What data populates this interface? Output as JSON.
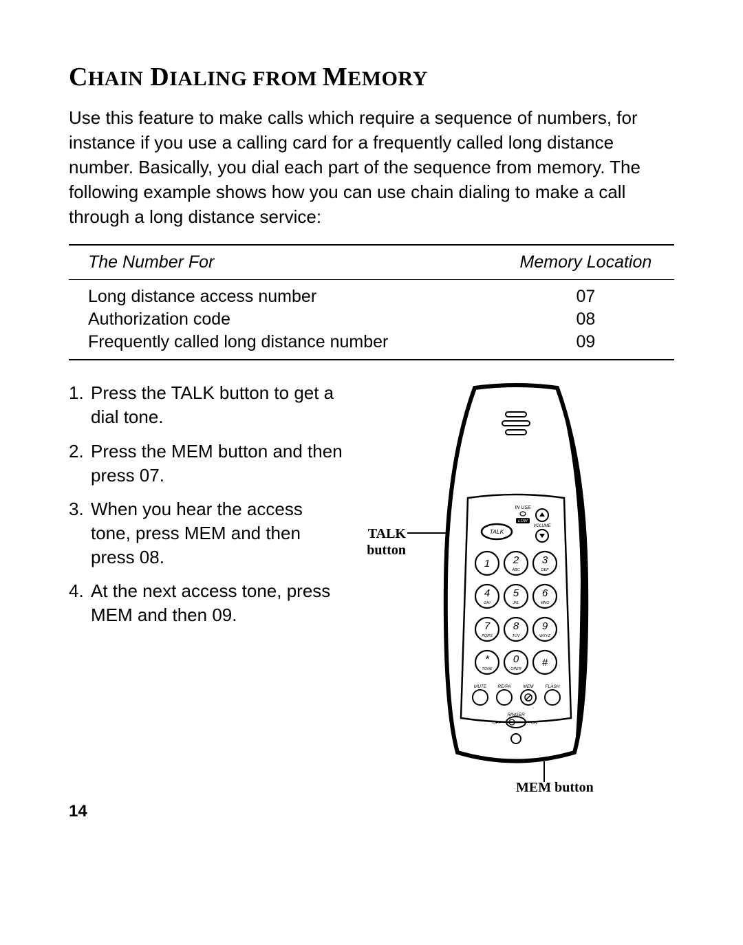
{
  "title": {
    "w1a": "C",
    "w1b": "HAIN",
    "sp": " ",
    "w2a": "D",
    "w2b": "IALING",
    "w3": " FROM ",
    "w4a": "M",
    "w4b": "EMORY"
  },
  "intro": "Use this feature to make calls which require a sequence of numbers, for instance if you use a calling card for a frequently called long distance number. Basically, you dial each part of the sequence from memory. The following example shows how you can use chain dialing to make a call through a long distance service:",
  "table": {
    "headers": [
      "The Number For",
      "Memory Location"
    ],
    "rows": [
      [
        "Long distance access number",
        "07"
      ],
      [
        "Authorization code",
        "08"
      ],
      [
        "Frequently called long distance number",
        "09"
      ]
    ]
  },
  "steps": [
    "Press the TALK button to get a dial tone.",
    "Press the MEM button and then press 07.",
    "When you hear the access tone, press MEM and then press 08.",
    "At the next access tone, press MEM and then 09."
  ],
  "labels": {
    "talk": "TALK button",
    "mem": "MEM button"
  },
  "phone": {
    "in_use": "IN USE",
    "low": "LOW",
    "talk": "TALK",
    "volume": "VOLUME",
    "keypad": [
      {
        "n": "1",
        "s": ""
      },
      {
        "n": "2",
        "s": "ABC"
      },
      {
        "n": "3",
        "s": "DEF"
      },
      {
        "n": "4",
        "s": "GHI"
      },
      {
        "n": "5",
        "s": "JKL"
      },
      {
        "n": "6",
        "s": "MNO"
      },
      {
        "n": "7",
        "s": "PQRS"
      },
      {
        "n": "8",
        "s": "TUV"
      },
      {
        "n": "9",
        "s": "WXYZ"
      },
      {
        "n": "*",
        "s": "TONE"
      },
      {
        "n": "0",
        "s": "OPER"
      },
      {
        "n": "#",
        "s": ""
      }
    ],
    "bottom_labels": [
      "MUTE",
      "RE/PA",
      "MEM",
      "FLASH"
    ],
    "ringer": "RINGER",
    "off": "OFF",
    "on": "ON"
  },
  "page_number": "14"
}
